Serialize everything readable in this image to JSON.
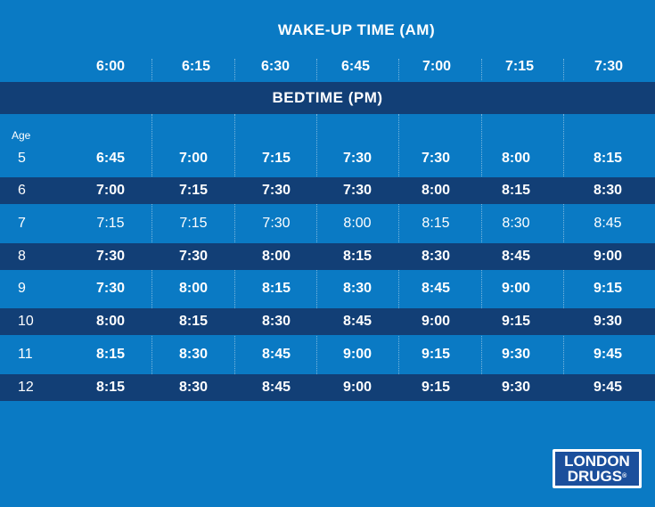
{
  "header": {
    "wake_title": "WAKE-UP TIME (AM)",
    "bedtime_title": "BEDTIME (PM)",
    "age_label": "Age"
  },
  "wake_times": [
    "6:00",
    "6:15",
    "6:30",
    "6:45",
    "7:00",
    "7:15",
    "7:30"
  ],
  "rows": [
    {
      "age": "5",
      "bedtimes": [
        "6:45",
        "7:00",
        "7:15",
        "7:30",
        "7:30",
        "8:00",
        "8:15"
      ]
    },
    {
      "age": "6",
      "bedtimes": [
        "7:00",
        "7:15",
        "7:30",
        "7:30",
        "8:00",
        "8:15",
        "8:30"
      ]
    },
    {
      "age": "7",
      "bedtimes": [
        "7:15",
        "7:15",
        "7:30",
        "8:00",
        "8:15",
        "8:30",
        "8:45"
      ]
    },
    {
      "age": "8",
      "bedtimes": [
        "7:30",
        "7:30",
        "8:00",
        "8:15",
        "8:30",
        "8:45",
        "9:00"
      ]
    },
    {
      "age": "9",
      "bedtimes": [
        "7:30",
        "8:00",
        "8:15",
        "8:30",
        "8:45",
        "9:00",
        "9:15"
      ]
    },
    {
      "age": "10",
      "bedtimes": [
        "8:00",
        "8:15",
        "8:30",
        "8:45",
        "9:00",
        "9:15",
        "9:30"
      ]
    },
    {
      "age": "11",
      "bedtimes": [
        "8:15",
        "8:30",
        "8:45",
        "9:00",
        "9:15",
        "9:30",
        "9:45"
      ]
    },
    {
      "age": "12",
      "bedtimes": [
        "8:15",
        "8:30",
        "8:45",
        "9:00",
        "9:15",
        "9:30",
        "9:45"
      ]
    }
  ],
  "logo": {
    "line1": "LONDON",
    "line2": "DRUGS",
    "mark": "®"
  },
  "colors": {
    "background": "#0a7ac4",
    "band": "#123f76",
    "text": "#ffffff"
  }
}
